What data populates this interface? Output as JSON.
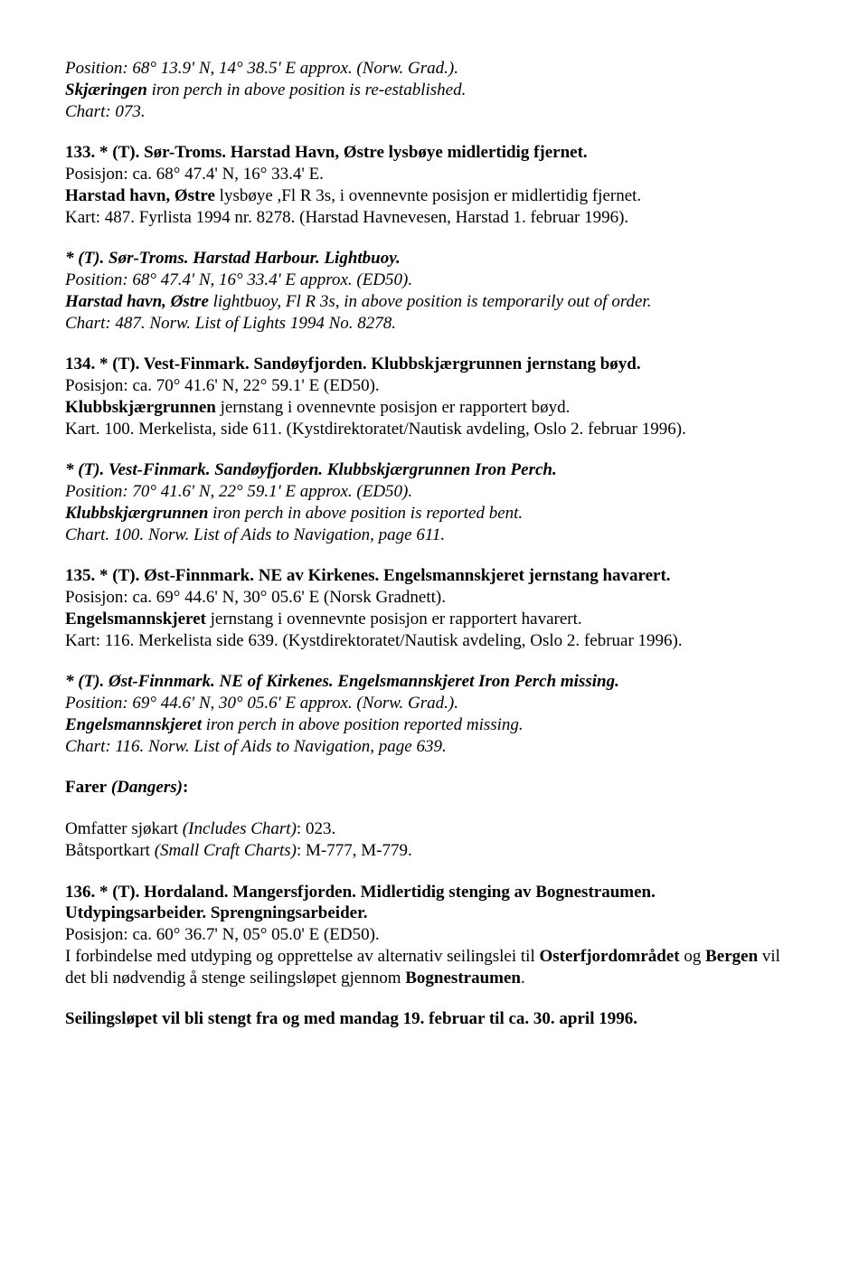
{
  "top": {
    "l1_pre_i": "Position: 68° 13.9' N, 14° 38.5' E approx. (Norw. Grad.).",
    "l2_a": "Skjæringen",
    "l2_b": " iron perch in above position is re-established.",
    "l3": "Chart: 073."
  },
  "n133": {
    "head": "133. * (T). Sør-Troms. Harstad Havn, Østre lysbøye midlertidig fjernet.",
    "l1": "Posisjon: ca. 68° 47.4' N, 16° 33.4' E.",
    "l2_a": "Harstad havn, Østre",
    "l2_b": " lysbøye ,Fl R 3s, i ovennevnte posisjon er midlertidig fjernet.",
    "l3": "Kart: 487. Fyrlista 1994 nr. 8278. (Harstad Havnevesen, Harstad 1. februar 1996)."
  },
  "n133en": {
    "head": "* (T). Sør-Troms. Harstad Harbour. Lightbuoy.",
    "l1": "Position: 68° 47.4' N, 16° 33.4' E approx. (ED50).",
    "l2_a": "Harstad havn, Østre",
    "l2_b": " lightbuoy, Fl R 3s, in above position is temporarily out of order.",
    "l3": "Chart: 487. Norw. List of Lights 1994 No. 8278."
  },
  "n134": {
    "head": "134. * (T). Vest-Finmark. Sandøyfjorden. Klubbskjærgrunnen jernstang bøyd.",
    "l1": "Posisjon: ca. 70° 41.6' N, 22° 59.1' E (ED50).",
    "l2_a": "Klubbskjærgrunnen",
    "l2_b": " jernstang i ovennevnte posisjon er rapportert bøyd.",
    "l3": "Kart. 100. Merkelista, side 611. (Kystdirektoratet/Nautisk avdeling, Oslo 2. februar 1996)."
  },
  "n134en": {
    "head": "* (T). Vest-Finmark. Sandøyfjorden. Klubbskjærgrunnen Iron Perch.",
    "l1": "Position: 70° 41.6' N, 22° 59.1' E approx. (ED50).",
    "l2_a": "Klubbskjærgrunnen",
    "l2_b": " iron perch in above position is reported bent.",
    "l3": "Chart. 100. Norw. List of Aids to Navigation, page 611."
  },
  "n135": {
    "head": "135. * (T). Øst-Finnmark. NE av Kirkenes. Engelsmannskjeret jernstang havarert.",
    "l1": "Posisjon: ca. 69° 44.6' N, 30° 05.6' E (Norsk Gradnett).",
    "l2_a": "Engelsmannskjeret",
    "l2_b": " jernstang i ovennevnte posisjon er rapportert havarert.",
    "l3": "Kart: 116. Merkelista side 639. (Kystdirektoratet/Nautisk avdeling, Oslo 2. februar 1996)."
  },
  "n135en": {
    "head": "* (T). Øst-Finnmark. NE of Kirkenes. Engelsmannskjeret Iron Perch missing.",
    "l1": "Position: 69° 44.6' N, 30° 05.6' E approx. (Norw. Grad.).",
    "l2_a": "Engelsmannskjeret",
    "l2_b": " iron perch in above position reported missing.",
    "l3": "Chart: 116. Norw. List of Aids to Navigation, page 639."
  },
  "dangers": {
    "head_a": "Farer",
    "head_b": " (Dangers)",
    "head_c": ":",
    "l1_a": "Omfatter sjøkart ",
    "l1_b": "(Includes Chart)",
    "l1_c": ": 023.",
    "l2_a": "Båtsportkart ",
    "l2_b": "(Small Craft Charts)",
    "l2_c": ": M-777, M-779."
  },
  "n136": {
    "head1": "136. * (T). Hordaland. Mangersfjorden. Midlertidig stenging av Bognestraumen.",
    "head2": "Utdypingsarbeider. Sprengningsarbeider.",
    "l1": "Posisjon: ca. 60° 36.7' N, 05° 05.0' E (ED50).",
    "l2_a": "I forbindelse med utdyping og opprettelse av alternativ seilingslei til ",
    "l2_b": "Osterfjordområdet",
    "l2_c": " og ",
    "l2_d": "Bergen",
    "l2_e": " vil det bli nødvendig å stenge seilingsløpet gjennom ",
    "l2_f": "Bognestraumen",
    "l2_g": "."
  },
  "closing": "Seilingsløpet vil bli stengt fra og med mandag 19. februar til ca. 30. april 1996."
}
